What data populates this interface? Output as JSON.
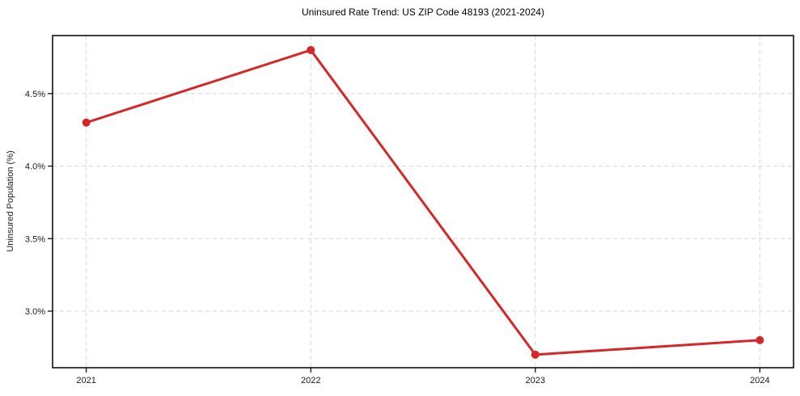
{
  "chart_data": {
    "type": "line",
    "title": "Uninsured Rate Trend: US ZIP Code 48193 (2021-2024)",
    "xlabel": "",
    "ylabel": "Uninsured Population (%)",
    "x": [
      2021,
      2022,
      2023,
      2024
    ],
    "y": [
      4.3,
      4.8,
      2.7,
      2.8
    ],
    "x_tick_labels": [
      "2021",
      "2022",
      "2023",
      "2024"
    ],
    "y_ticks": [
      3.0,
      3.5,
      4.0,
      4.5
    ],
    "y_tick_labels": [
      "3.0%",
      "3.5%",
      "4.0%",
      "4.5%"
    ],
    "xlim": [
      2020.85,
      2024.15
    ],
    "ylim": [
      2.61,
      4.9
    ],
    "grid": true,
    "grid_style": "dashed",
    "legend": "none",
    "line_color": "#d62728",
    "marker": "circle",
    "grid_color": "#d6d6d6",
    "axis_color": "#000000",
    "text_color": "#1a1a1a",
    "background_color": "#ffffff"
  }
}
